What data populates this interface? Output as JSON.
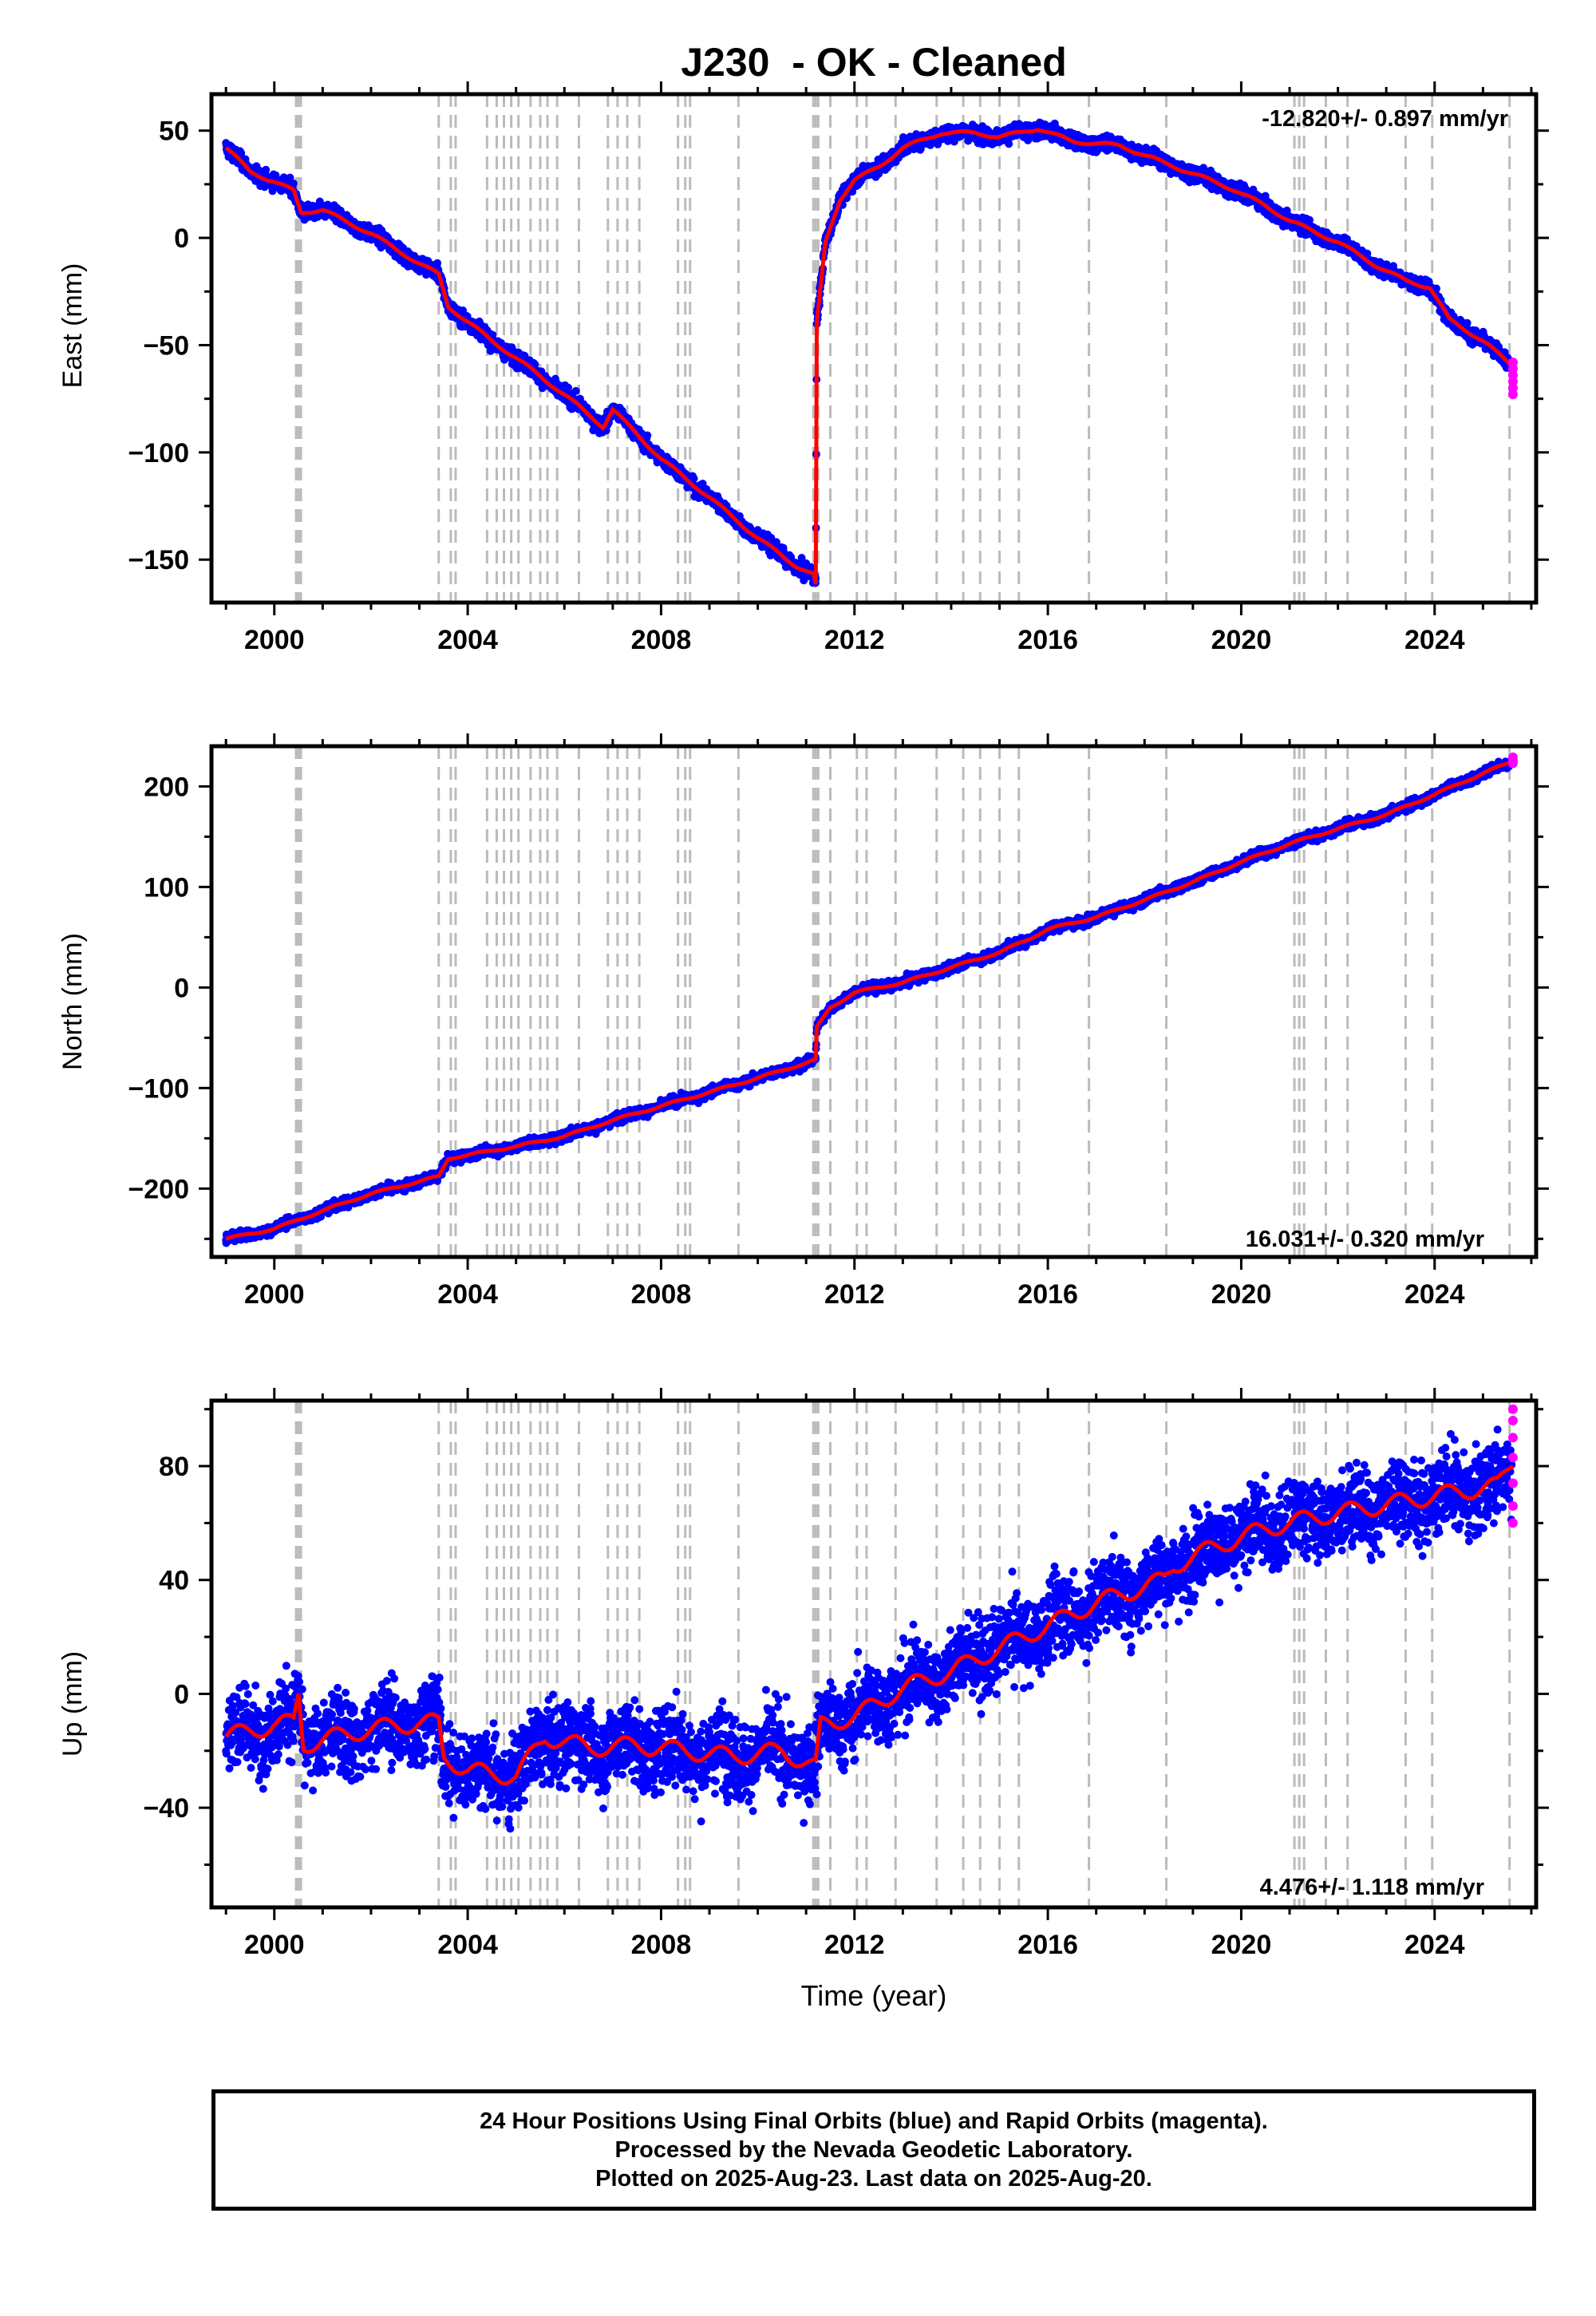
{
  "title": "J230  - OK - Cleaned",
  "xlabel": "Time (year)",
  "caption": {
    "line1": "24 Hour Positions Using Final Orbits (blue) and Rapid Orbits (magenta).",
    "line2": "Processed by the Nevada Geodetic Laboratory.",
    "line3": "Plotted on 2025-Aug-23. Last data on 2025-Aug-20."
  },
  "colors": {
    "final_orbits": "#0000ff",
    "rapid_orbits": "#ff00ff",
    "model": "#ff0000",
    "event_lines": "#bbbbbb"
  },
  "chart_data": [
    {
      "type": "scatter",
      "component": "east",
      "ylabel": "East (mm)",
      "rate_label": "-12.820+/- 0.897 mm/yr",
      "rate_position": "top-right",
      "xlim": [
        1998.7,
        2026.1
      ],
      "ylim": [
        -170,
        67
      ],
      "xticks": [
        2000,
        2004,
        2008,
        2012,
        2016,
        2020,
        2024
      ],
      "yticks": [
        -150,
        -100,
        -50,
        0,
        50
      ],
      "ytick_labels": [
        "−150",
        "−100",
        "−50",
        "0",
        "50"
      ],
      "scatter_spread_mm": 3,
      "trend": [
        [
          1999.0,
          42
        ],
        [
          1999.5,
          31
        ],
        [
          2000.4,
          22
        ],
        [
          2000.55,
          12
        ],
        [
          2001.0,
          13
        ],
        [
          2002.0,
          2
        ],
        [
          2003.0,
          -12
        ],
        [
          2003.4,
          -17
        ],
        [
          2003.6,
          -32
        ],
        [
          2004.5,
          -48
        ],
        [
          2005.0,
          -56
        ],
        [
          2006.0,
          -73
        ],
        [
          2006.8,
          -88
        ],
        [
          2007.0,
          -80
        ],
        [
          2008.0,
          -103
        ],
        [
          2009.0,
          -121
        ],
        [
          2010.0,
          -140
        ],
        [
          2010.8,
          -153
        ],
        [
          2011.15,
          -157
        ],
        [
          2011.2,
          -162
        ],
        [
          2011.22,
          -40
        ],
        [
          2011.4,
          -2
        ],
        [
          2011.7,
          18
        ],
        [
          2012.0,
          27
        ],
        [
          2012.5,
          33
        ],
        [
          2013.0,
          42
        ],
        [
          2013.8,
          49
        ],
        [
          2014.5,
          49
        ],
        [
          2015.0,
          47
        ],
        [
          2015.8,
          51
        ],
        [
          2016.5,
          45
        ],
        [
          2017.5,
          43
        ],
        [
          2018.4,
          35
        ],
        [
          2019.0,
          30
        ],
        [
          2019.8,
          23
        ],
        [
          2020.5,
          15
        ],
        [
          2021.0,
          8
        ],
        [
          2022.0,
          -2
        ],
        [
          2022.8,
          -13
        ],
        [
          2023.4,
          -20
        ],
        [
          2023.9,
          -23
        ],
        [
          2024.3,
          -38
        ],
        [
          2025.0,
          -48
        ],
        [
          2025.62,
          -60
        ]
      ],
      "rapid_points": [
        [
          2025.62,
          -58
        ],
        [
          2025.62,
          -61
        ],
        [
          2025.62,
          -64
        ],
        [
          2025.62,
          -67
        ],
        [
          2025.62,
          -70
        ],
        [
          2025.62,
          -73
        ]
      ]
    },
    {
      "type": "scatter",
      "component": "north",
      "ylabel": "North (mm)",
      "rate_label": "16.031+/- 0.320 mm/yr",
      "rate_position": "bottom-right",
      "xlim": [
        1998.7,
        2026.1
      ],
      "ylim": [
        -268,
        240
      ],
      "xticks": [
        2000,
        2004,
        2008,
        2012,
        2016,
        2020,
        2024
      ],
      "yticks": [
        -200,
        -100,
        0,
        100,
        200
      ],
      "ytick_labels": [
        "−200",
        "−100",
        "0",
        "100",
        "200"
      ],
      "scatter_spread_mm": 4,
      "trend": [
        [
          1999.0,
          -250
        ],
        [
          2000.0,
          -240
        ],
        [
          2001.0,
          -222
        ],
        [
          2002.0,
          -205
        ],
        [
          2003.4,
          -188
        ],
        [
          2003.6,
          -170
        ],
        [
          2005.0,
          -158
        ],
        [
          2006.0,
          -148
        ],
        [
          2007.0,
          -132
        ],
        [
          2008.0,
          -118
        ],
        [
          2009.0,
          -104
        ],
        [
          2010.0,
          -90
        ],
        [
          2011.2,
          -72
        ],
        [
          2011.22,
          -40
        ],
        [
          2011.5,
          -20
        ],
        [
          2012.0,
          -5
        ],
        [
          2013.0,
          5
        ],
        [
          2014.0,
          20
        ],
        [
          2015.0,
          35
        ],
        [
          2015.6,
          48
        ],
        [
          2016.0,
          58
        ],
        [
          2017.0,
          70
        ],
        [
          2018.0,
          87
        ],
        [
          2019.0,
          105
        ],
        [
          2020.0,
          125
        ],
        [
          2021.0,
          143
        ],
        [
          2022.0,
          158
        ],
        [
          2023.0,
          172
        ],
        [
          2024.0,
          192
        ],
        [
          2025.0,
          213
        ],
        [
          2025.62,
          225
        ]
      ],
      "rapid_points": [
        [
          2025.62,
          223
        ],
        [
          2025.62,
          226
        ],
        [
          2025.62,
          229
        ]
      ]
    },
    {
      "type": "scatter",
      "component": "up",
      "ylabel": "Up (mm)",
      "rate_label": "4.476+/- 1.118 mm/yr",
      "rate_position": "bottom-right",
      "xlim": [
        1998.7,
        2026.1
      ],
      "ylim": [
        -75,
        103
      ],
      "xticks": [
        2000,
        2004,
        2008,
        2012,
        2016,
        2020,
        2024
      ],
      "yticks": [
        -40,
        0,
        40,
        80
      ],
      "ytick_labels": [
        "−40",
        "0",
        "40",
        "80"
      ],
      "scatter_spread_mm": 12,
      "trend": [
        [
          1999.0,
          -15
        ],
        [
          2000.0,
          -11
        ],
        [
          2000.4,
          -10
        ],
        [
          2000.5,
          0
        ],
        [
          2000.6,
          -18
        ],
        [
          2001.5,
          -14
        ],
        [
          2002.5,
          -11
        ],
        [
          2003.4,
          -10
        ],
        [
          2003.5,
          -22
        ],
        [
          2004.0,
          -27
        ],
        [
          2005.0,
          -29
        ],
        [
          2005.6,
          -15
        ],
        [
          2006.5,
          -19
        ],
        [
          2007.5,
          -18
        ],
        [
          2008.5,
          -20
        ],
        [
          2009.5,
          -22
        ],
        [
          2010.5,
          -20
        ],
        [
          2011.2,
          -26
        ],
        [
          2011.3,
          -11
        ],
        [
          2012.0,
          -8
        ],
        [
          2013.0,
          2
        ],
        [
          2014.0,
          8
        ],
        [
          2015.0,
          16
        ],
        [
          2016.0,
          24
        ],
        [
          2017.0,
          32
        ],
        [
          2018.4,
          40
        ],
        [
          2018.6,
          45
        ],
        [
          2019.5,
          52
        ],
        [
          2020.5,
          58
        ],
        [
          2021.5,
          62
        ],
        [
          2022.5,
          65
        ],
        [
          2023.5,
          68
        ],
        [
          2024.5,
          71
        ],
        [
          2025.3,
          73
        ],
        [
          2025.62,
          82
        ]
      ],
      "rapid_points": [
        [
          2025.62,
          60
        ],
        [
          2025.62,
          66
        ],
        [
          2025.62,
          74
        ],
        [
          2025.62,
          83
        ],
        [
          2025.62,
          90
        ],
        [
          2025.62,
          96
        ],
        [
          2025.62,
          100
        ]
      ]
    }
  ],
  "event_years": [
    2000.45,
    2000.5,
    2000.55,
    2003.4,
    2003.65,
    2003.75,
    2004.4,
    2004.6,
    2004.75,
    2004.9,
    2005.05,
    2005.3,
    2005.5,
    2005.65,
    2005.85,
    2006.3,
    2006.9,
    2007.1,
    2007.3,
    2007.55,
    2008.35,
    2008.5,
    2008.6,
    2009.6,
    2011.15,
    2011.2,
    2011.25,
    2011.5,
    2012.05,
    2012.25,
    2012.85,
    2013.7,
    2014.25,
    2014.6,
    2015.0,
    2015.4,
    2016.85,
    2018.45,
    2021.1,
    2021.2,
    2021.3,
    2021.75,
    2022.2,
    2023.4,
    2023.95,
    2025.55
  ]
}
